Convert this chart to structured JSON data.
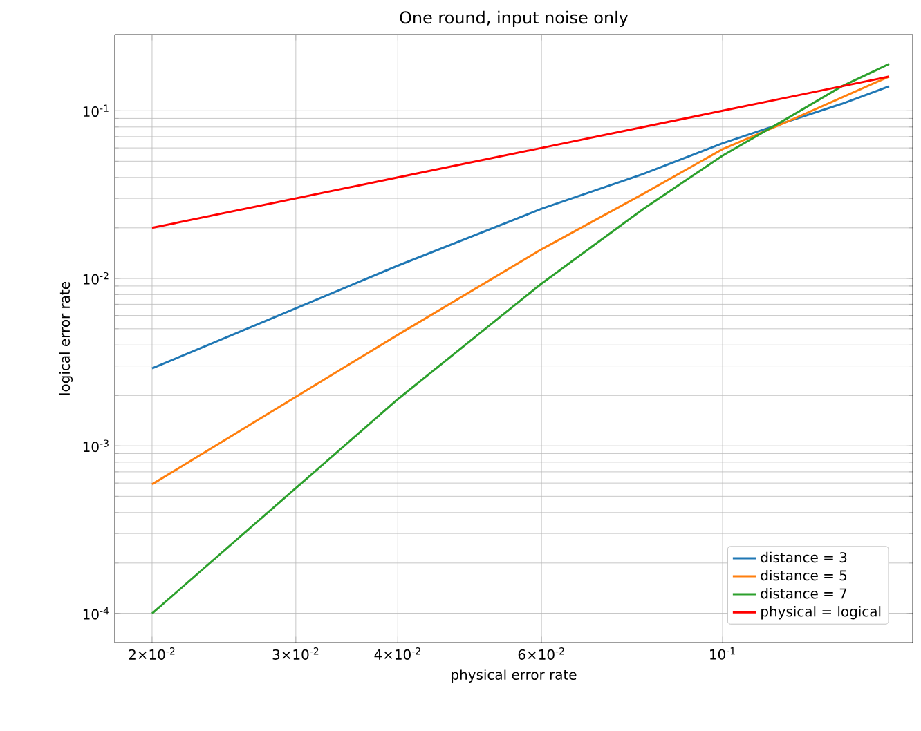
{
  "chart_data": {
    "type": "line",
    "title": "One round, input noise only",
    "xlabel": "physical error rate",
    "ylabel": "logical error rate",
    "log": "xy",
    "grid": true,
    "legend": "bottom right",
    "xlim": [
      0.018,
      0.171
    ],
    "ylim": [
      6.7e-05,
      0.285
    ],
    "xticks": [
      {
        "value": 0.02,
        "label": "2×10$^{-2}$"
      },
      {
        "value": 0.03,
        "label": "3×10$^{-2}$"
      },
      {
        "value": 0.04,
        "label": "4×10$^{-2}$"
      },
      {
        "value": 0.06,
        "label": "6×10$^{-2}$"
      },
      {
        "value": 0.1,
        "label": "10$^{-1}$"
      }
    ],
    "yticks": [
      {
        "value": 0.0001,
        "label": "10$^{-4}$"
      },
      {
        "value": 0.001,
        "label": "10$^{-3}$"
      },
      {
        "value": 0.01,
        "label": "10$^{-2}$"
      },
      {
        "value": 0.1,
        "label": "10$^{-1}$"
      }
    ],
    "x": [
      0.02,
      0.04,
      0.06,
      0.08,
      0.1,
      0.12,
      0.14,
      0.16
    ],
    "series": [
      {
        "name": "distance = 3",
        "color": "#1f77b4",
        "values": [
          0.0029,
          0.0119,
          0.026,
          0.042,
          0.064,
          0.086,
          0.11,
          0.14
        ]
      },
      {
        "name": "distance = 5",
        "color": "#ff7f0e",
        "values": [
          0.00059,
          0.0046,
          0.0149,
          0.032,
          0.059,
          0.086,
          0.12,
          0.16
        ]
      },
      {
        "name": "distance = 7",
        "color": "#2ca02c",
        "values": [
          0.0001,
          0.0019,
          0.0093,
          0.026,
          0.054,
          0.09,
          0.14,
          0.19
        ]
      },
      {
        "name": "physical = logical",
        "color": "#ff0000",
        "values": [
          0.02,
          0.04,
          0.06,
          0.08,
          0.1,
          0.12,
          0.14,
          0.16
        ]
      }
    ]
  }
}
